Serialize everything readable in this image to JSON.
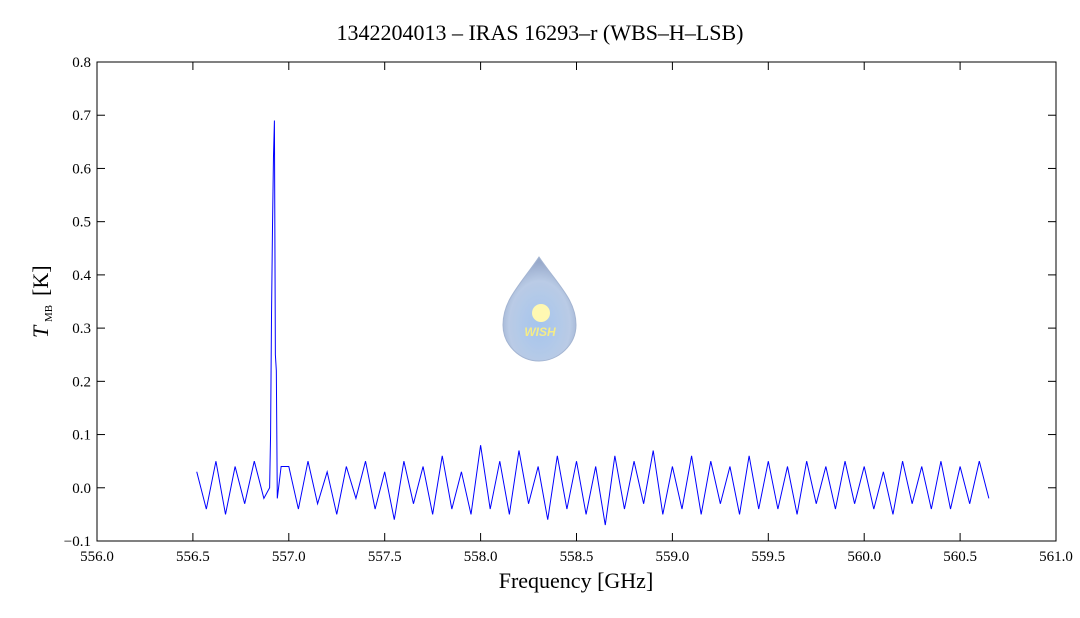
{
  "chart_data": {
    "type": "line",
    "title": "1342204013 – IRAS 16293–r (WBS–H–LSB)",
    "x_label": "Frequency [GHz]",
    "y_label": "T",
    "y_label_sub": "MB",
    "y_label_unit": "[K]",
    "logo_text": "WISH",
    "color": "#0000ff",
    "xlim": [
      556.0,
      561.0
    ],
    "ylim": [
      -0.1,
      0.8
    ],
    "xticks": [
      {
        "value": 556,
        "label": "556.0"
      },
      556.5,
      {
        "value": 557,
        "label": "557.0"
      },
      557.5,
      {
        "value": 558,
        "label": "558.0"
      },
      558.5,
      {
        "value": 559,
        "label": "559.0"
      },
      559.5,
      {
        "value": 560,
        "label": "560.0"
      },
      560.5,
      {
        "value": 561,
        "label": "561.0"
      }
    ],
    "yticks": [
      {
        "value": -0.1,
        "label": "−0.1"
      },
      {
        "value": 0,
        "label": "0.0"
      },
      0.1,
      0.2,
      0.3,
      0.4,
      0.5,
      0.6,
      0.7,
      0.8
    ],
    "x": [
      556.52,
      556.57,
      556.62,
      556.67,
      556.72,
      556.77,
      556.82,
      556.87,
      556.9,
      556.905,
      556.91,
      556.915,
      556.92,
      556.925,
      556.93,
      556.935,
      556.94,
      556.96,
      557.0,
      557.05,
      557.1,
      557.15,
      557.2,
      557.25,
      557.3,
      557.35,
      557.4,
      557.45,
      557.5,
      557.55,
      557.6,
      557.65,
      557.7,
      557.75,
      557.8,
      557.85,
      557.9,
      557.95,
      558.0,
      558.05,
      558.1,
      558.15,
      558.2,
      558.25,
      558.3,
      558.35,
      558.4,
      558.45,
      558.5,
      558.55,
      558.6,
      558.65,
      558.7,
      558.75,
      558.8,
      558.85,
      558.9,
      558.95,
      559.0,
      559.05,
      559.1,
      559.15,
      559.2,
      559.25,
      559.3,
      559.35,
      559.4,
      559.45,
      559.5,
      559.55,
      559.6,
      559.65,
      559.7,
      559.75,
      559.8,
      559.85,
      559.9,
      559.95,
      560.0,
      560.05,
      560.1,
      560.15,
      560.2,
      560.25,
      560.3,
      560.35,
      560.4,
      560.45,
      560.5,
      560.55,
      560.6,
      560.65
    ],
    "values": [
      0.03,
      -0.04,
      0.05,
      -0.05,
      0.04,
      -0.03,
      0.05,
      -0.02,
      0.0,
      0.1,
      0.33,
      0.49,
      0.62,
      0.69,
      0.25,
      0.22,
      -0.02,
      0.04,
      0.04,
      -0.04,
      0.05,
      -0.03,
      0.03,
      -0.05,
      0.04,
      -0.02,
      0.05,
      -0.04,
      0.03,
      -0.06,
      0.05,
      -0.03,
      0.04,
      -0.05,
      0.06,
      -0.04,
      0.03,
      -0.05,
      0.08,
      -0.04,
      0.05,
      -0.05,
      0.07,
      -0.03,
      0.04,
      -0.06,
      0.06,
      -0.04,
      0.05,
      -0.05,
      0.04,
      -0.07,
      0.06,
      -0.04,
      0.05,
      -0.03,
      0.07,
      -0.05,
      0.04,
      -0.04,
      0.06,
      -0.05,
      0.05,
      -0.03,
      0.04,
      -0.05,
      0.06,
      -0.04,
      0.05,
      -0.04,
      0.04,
      -0.05,
      0.05,
      -0.03,
      0.04,
      -0.04,
      0.05,
      -0.03,
      0.04,
      -0.04,
      0.03,
      -0.05,
      0.05,
      -0.03,
      0.04,
      -0.04,
      0.05,
      -0.04,
      0.04,
      -0.03,
      0.05,
      -0.02
    ]
  }
}
